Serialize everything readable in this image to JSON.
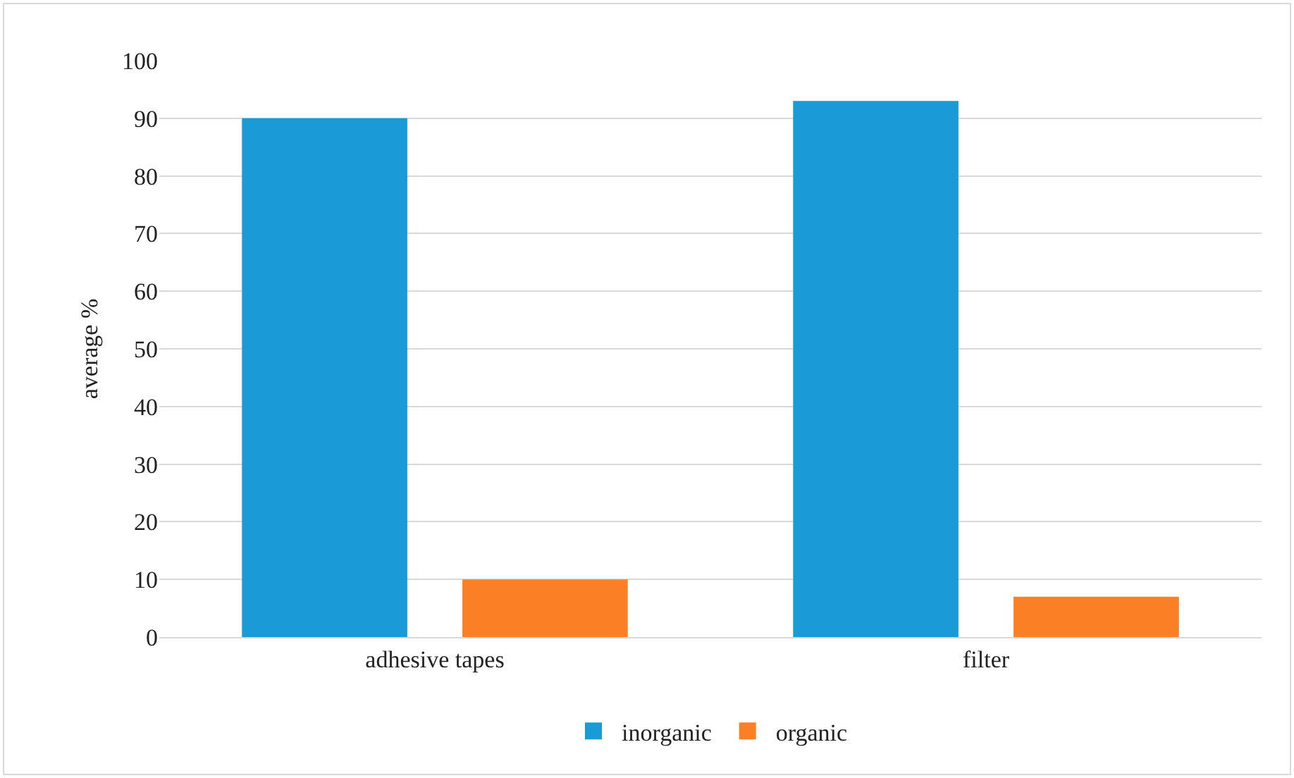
{
  "chart_data": {
    "type": "bar",
    "ylabel": "average %",
    "categories": [
      "adhesive tapes",
      "filter"
    ],
    "series": [
      {
        "name": "inorganic",
        "color": "#1a9bd7",
        "values": [
          90,
          93
        ]
      },
      {
        "name": "organic",
        "color": "#fb7f25",
        "values": [
          10,
          7
        ]
      }
    ],
    "ylim": [
      0,
      100
    ],
    "yticks": [
      0,
      10,
      20,
      30,
      40,
      50,
      60,
      70,
      80,
      90,
      100
    ],
    "grid": "y",
    "legend": "bottom"
  }
}
